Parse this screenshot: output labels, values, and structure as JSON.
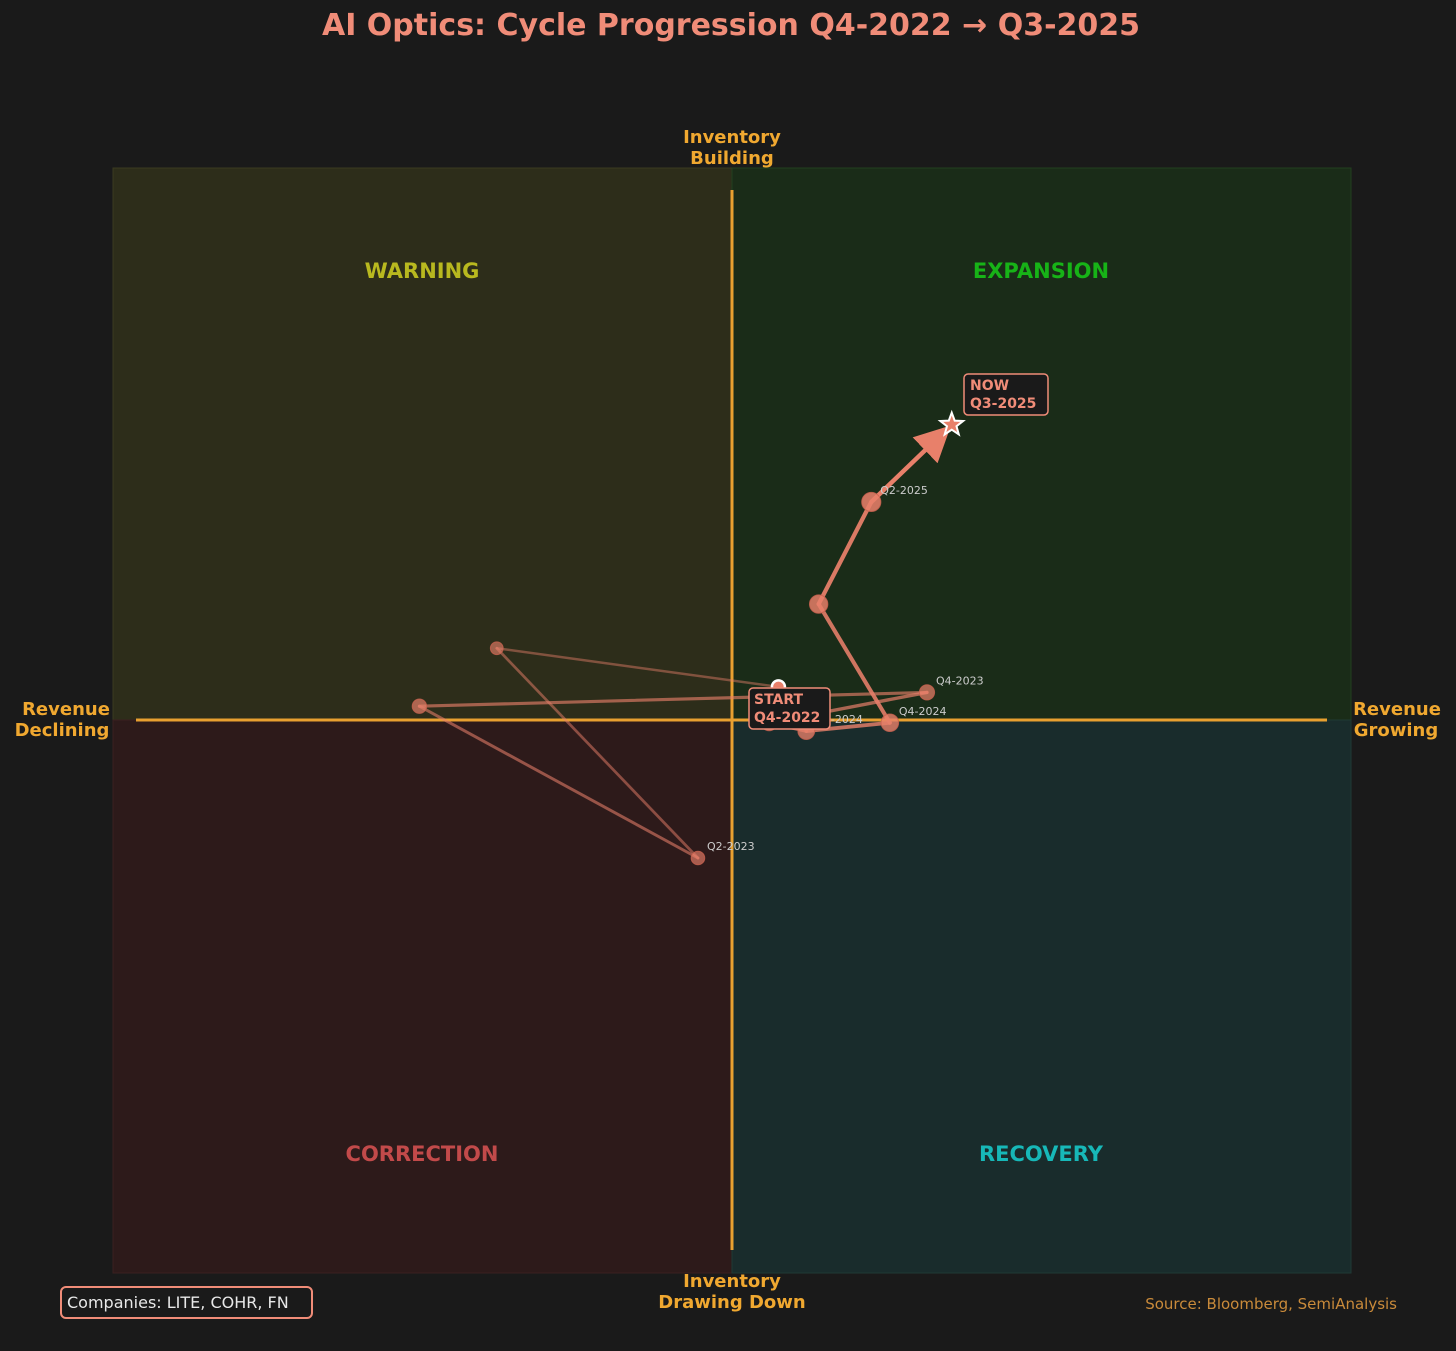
{
  "chart_data": {
    "type": "scatter",
    "title": "AI Optics: Cycle Progression Q4-2022 → Q3-2025",
    "axis_labels": {
      "top": [
        "Inventory",
        "Building"
      ],
      "bottom": [
        "Inventory",
        "Drawing Down"
      ],
      "left": [
        "Revenue",
        "Declining"
      ],
      "right": [
        "Revenue",
        "Growing"
      ]
    },
    "xlim": [
      -1,
      1
    ],
    "ylim": [
      -1,
      1
    ],
    "grid": false,
    "quadrants": [
      {
        "key": "warning",
        "label": "WARNING",
        "fill": "#2d2d1a",
        "text_color": "#b8b81f"
      },
      {
        "key": "expansion",
        "label": "EXPANSION",
        "fill": "#1a2c18",
        "text_color": "#17b317"
      },
      {
        "key": "correction",
        "label": "CORRECTION",
        "fill": "#2d1a1a",
        "text_color": "#c24a4a"
      },
      {
        "key": "recovery",
        "label": "RECOVERY",
        "fill": "#192c2c",
        "text_color": "#17b8b8"
      }
    ],
    "series": [
      {
        "points": [
          {
            "x": 0.075,
            "y": 0.06
          },
          {
            "x": -0.38,
            "y": 0.13
          },
          {
            "x": -0.055,
            "y": -0.25
          },
          {
            "x": -0.505,
            "y": 0.025
          },
          {
            "x": 0.315,
            "y": 0.05
          },
          {
            "x": 0.06,
            "y": -0.005
          },
          {
            "x": 0.12,
            "y": -0.02
          },
          {
            "x": 0.255,
            "y": -0.005
          },
          {
            "x": 0.14,
            "y": 0.21
          },
          {
            "x": 0.225,
            "y": 0.395
          },
          {
            "x": 0.355,
            "y": 0.535
          }
        ],
        "point_labels": [
          "",
          "",
          "Q2-2023",
          "",
          "Q4-2023",
          "",
          "Q2-2024",
          "Q4-2024",
          "",
          "Q2-2025",
          ""
        ]
      }
    ],
    "start_label": [
      "START",
      "Q4-2022"
    ],
    "end_label": [
      "NOW",
      "Q3-2025"
    ],
    "colors": {
      "background": "#1a1a1a",
      "accent": "#f08c78",
      "trail": "#e8806a",
      "axis": "#f0a830",
      "point_label": "#cccccc"
    }
  },
  "footer": {
    "companies": "Companies: LITE, COHR, FN",
    "source": "Source: Bloomberg, SemiAnalysis"
  }
}
